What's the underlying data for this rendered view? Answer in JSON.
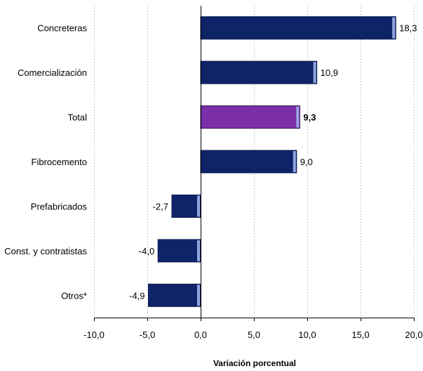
{
  "chart_data": {
    "type": "bar",
    "orientation": "horizontal",
    "categories": [
      "Concreteras",
      "Comercialización",
      "Total",
      "Fibrocemento",
      "Prefabricados",
      "Const. y contratistas",
      "Otros*"
    ],
    "values": [
      18.3,
      10.9,
      9.3,
      9.0,
      -2.7,
      -4.0,
      -4.9
    ],
    "value_labels": [
      "18,3",
      "10,9",
      "9,3",
      "9,0",
      "-2,7",
      "-4,0",
      "-4,9"
    ],
    "highlight_index": 2,
    "xlabel": "Variación porcentual",
    "xlim": [
      -10,
      20
    ],
    "x_ticks": [
      -10,
      -5,
      0,
      5,
      10,
      15,
      20
    ],
    "x_tick_labels": [
      "-10,0",
      "-5,0",
      "0,0",
      "5,0",
      "10,0",
      "15,0",
      "20,0"
    ],
    "grid": true,
    "colors": {
      "bar": "#0f2468",
      "bar_edge": "#0a1a50",
      "bar_highlight": "#7b2fa8",
      "bar_highlight_edge": "#3a0f55",
      "bar_end_cap": "#9fb4ea"
    }
  }
}
